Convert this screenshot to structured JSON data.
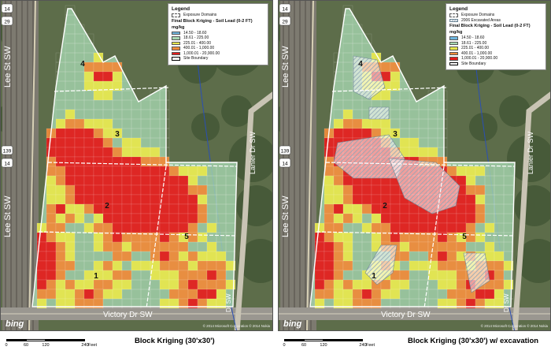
{
  "legend": {
    "title": "Legend",
    "exposure_label": "Exposure Domains",
    "excavated_label": "2006 Excavated Areas",
    "layer_title": "Final Block Kriging - Soil Lead (0-2 FT)",
    "units": "mg/kg",
    "classes": [
      {
        "label": "14.50 - 18.60",
        "color": "#6fb6df"
      },
      {
        "label": "18.61 - 225.00",
        "color": "#a8d8b2"
      },
      {
        "label": "225.01 - 400.00",
        "color": "#e6e64d"
      },
      {
        "label": "400.01 - 1,000.00",
        "color": "#ee8a3a"
      },
      {
        "label": "1,000.01 - 20,900.00",
        "color": "#e31b1b"
      }
    ],
    "boundary_label": "Site Boundary"
  },
  "panels": {
    "left": {
      "caption": "Block Kriging (30'x30')"
    },
    "right": {
      "caption": "Block Kriging (30'x30') w/ excavation"
    }
  },
  "scale": {
    "ticks": [
      "0",
      "60",
      "120",
      "240"
    ],
    "unit": "Feet"
  },
  "roads": {
    "lee": "Lee St SW",
    "lanier": "Lanier Dr SW",
    "victory": "Victory Dr SW",
    "dr": "Dr SW"
  },
  "route_shields": [
    "14",
    "29",
    "139",
    "14"
  ],
  "domains": [
    "1",
    "2",
    "3",
    "4",
    "5"
  ],
  "bing": "bing",
  "copyright": "© 2014 Microsoft Corporation  © 2014 Nokia"
}
